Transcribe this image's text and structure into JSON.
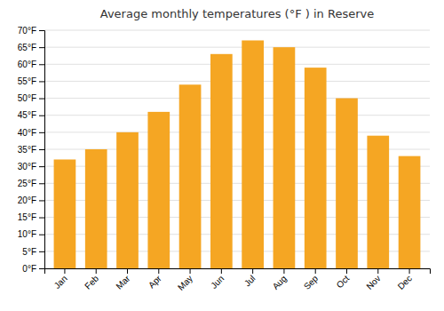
{
  "chart_data": {
    "type": "bar",
    "title": "Average monthly temperatures (°F ) in Reserve",
    "categories": [
      "Jan",
      "Feb",
      "Mar",
      "Apr",
      "May",
      "Jun",
      "Jul",
      "Aug",
      "Sep",
      "Oct",
      "Nov",
      "Dec"
    ],
    "values": [
      32,
      35,
      40,
      46,
      54,
      63,
      67,
      65,
      59,
      50,
      39,
      33
    ],
    "color": "#F5A623",
    "ylim": [
      0,
      70
    ],
    "yticks": [
      {
        "value": 0,
        "label": "0°F"
      },
      {
        "value": 5,
        "label": "5°F"
      },
      {
        "value": 10,
        "label": "10°F"
      },
      {
        "value": 15,
        "label": "15°F"
      },
      {
        "value": 20,
        "label": "20°F"
      },
      {
        "value": 25,
        "label": "25°F"
      },
      {
        "value": 30,
        "label": "30°F"
      },
      {
        "value": 35,
        "label": "35°F"
      },
      {
        "value": 40,
        "label": "40°F"
      },
      {
        "value": 45,
        "label": "45°F"
      },
      {
        "value": 50,
        "label": "50°F"
      },
      {
        "value": 55,
        "label": "55°F"
      },
      {
        "value": 60,
        "label": "60°F"
      },
      {
        "value": 65,
        "label": "65°F"
      },
      {
        "value": 70,
        "label": "70°F"
      }
    ],
    "grid": true
  }
}
